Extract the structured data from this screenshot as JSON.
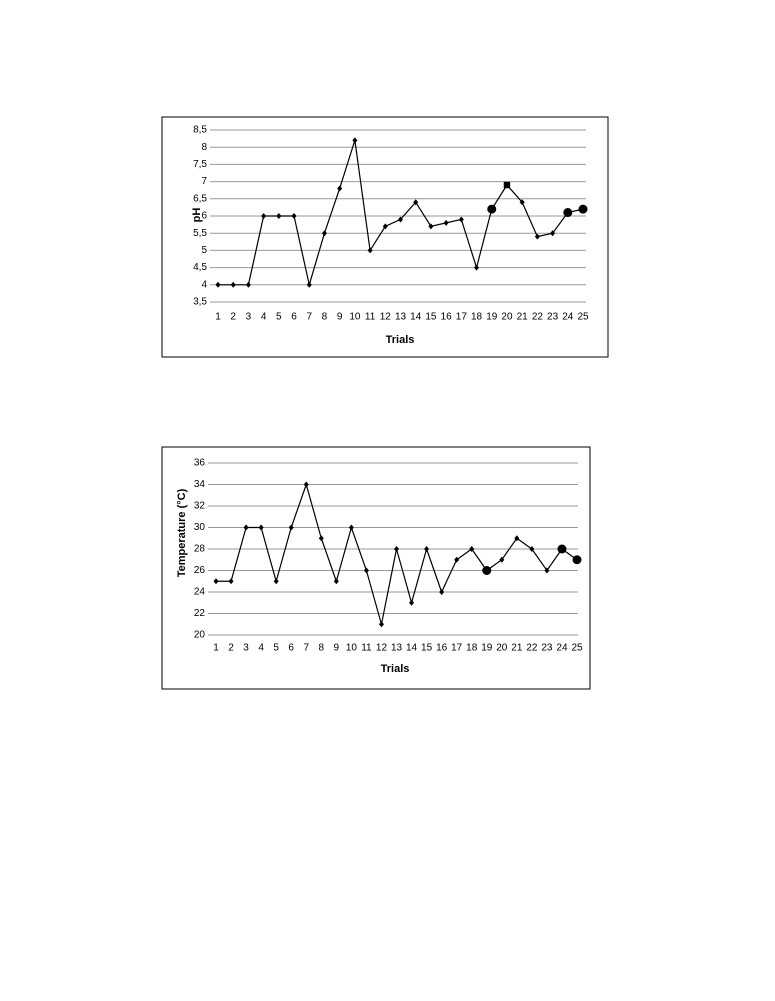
{
  "chart_data": [
    {
      "type": "line",
      "y_label": "pH",
      "x_label": "Trials",
      "categories": [
        1,
        2,
        3,
        4,
        5,
        6,
        7,
        8,
        9,
        10,
        11,
        12,
        13,
        14,
        15,
        16,
        17,
        18,
        19,
        20,
        21,
        22,
        23,
        24,
        25
      ],
      "values": [
        4,
        4,
        4,
        6,
        6,
        6,
        4,
        5.5,
        6.8,
        8.2,
        5,
        5.7,
        5.9,
        6.4,
        5.7,
        5.8,
        5.9,
        4.5,
        6.2,
        6.9,
        6.4,
        5.4,
        5.5,
        6.1,
        6.2
      ],
      "markers": [
        "diamond",
        "diamond",
        "diamond",
        "diamond",
        "diamond",
        "diamond",
        "diamond",
        "diamond",
        "diamond",
        "diamond",
        "diamond",
        "diamond",
        "diamond",
        "diamond",
        "diamond",
        "diamond",
        "diamond",
        "diamond",
        "circle",
        "square",
        "diamond",
        "diamond",
        "diamond",
        "circle",
        "circle"
      ],
      "color": "#000000",
      "ylim": [
        3.5,
        8.5
      ],
      "yticks": [
        {
          "value": 3.5,
          "label": "3,5"
        },
        4,
        {
          "value": 4.5,
          "label": "4,5"
        },
        5,
        {
          "value": 5.5,
          "label": "5,5"
        },
        6,
        {
          "value": 6.5,
          "label": "6,5"
        },
        7,
        {
          "value": 7.5,
          "label": "7,5"
        },
        8,
        {
          "value": 8.5,
          "label": "8,5"
        }
      ],
      "grid": true
    },
    {
      "type": "line",
      "y_label": "Temperature (°C)",
      "x_label": "Trials",
      "categories": [
        1,
        2,
        3,
        4,
        5,
        6,
        7,
        8,
        9,
        10,
        11,
        12,
        13,
        14,
        15,
        16,
        17,
        18,
        19,
        20,
        21,
        22,
        23,
        24,
        25
      ],
      "values": [
        25,
        25,
        30,
        30,
        25,
        30,
        34,
        29,
        25,
        30,
        26,
        21,
        28,
        23,
        28,
        24,
        27,
        28,
        26,
        27,
        29,
        28,
        26,
        28,
        27
      ],
      "markers": [
        "diamond",
        "diamond",
        "diamond",
        "diamond",
        "diamond",
        "diamond",
        "diamond",
        "diamond",
        "diamond",
        "diamond",
        "diamond",
        "diamond",
        "diamond",
        "diamond",
        "diamond",
        "diamond",
        "diamond",
        "diamond",
        "circle",
        "diamond",
        "diamond",
        "diamond",
        "diamond",
        "circle",
        "circle"
      ],
      "color": "#000000",
      "ylim": [
        20,
        36
      ],
      "yticks": [
        20,
        22,
        24,
        26,
        28,
        30,
        32,
        34,
        36
      ],
      "grid": true
    }
  ]
}
